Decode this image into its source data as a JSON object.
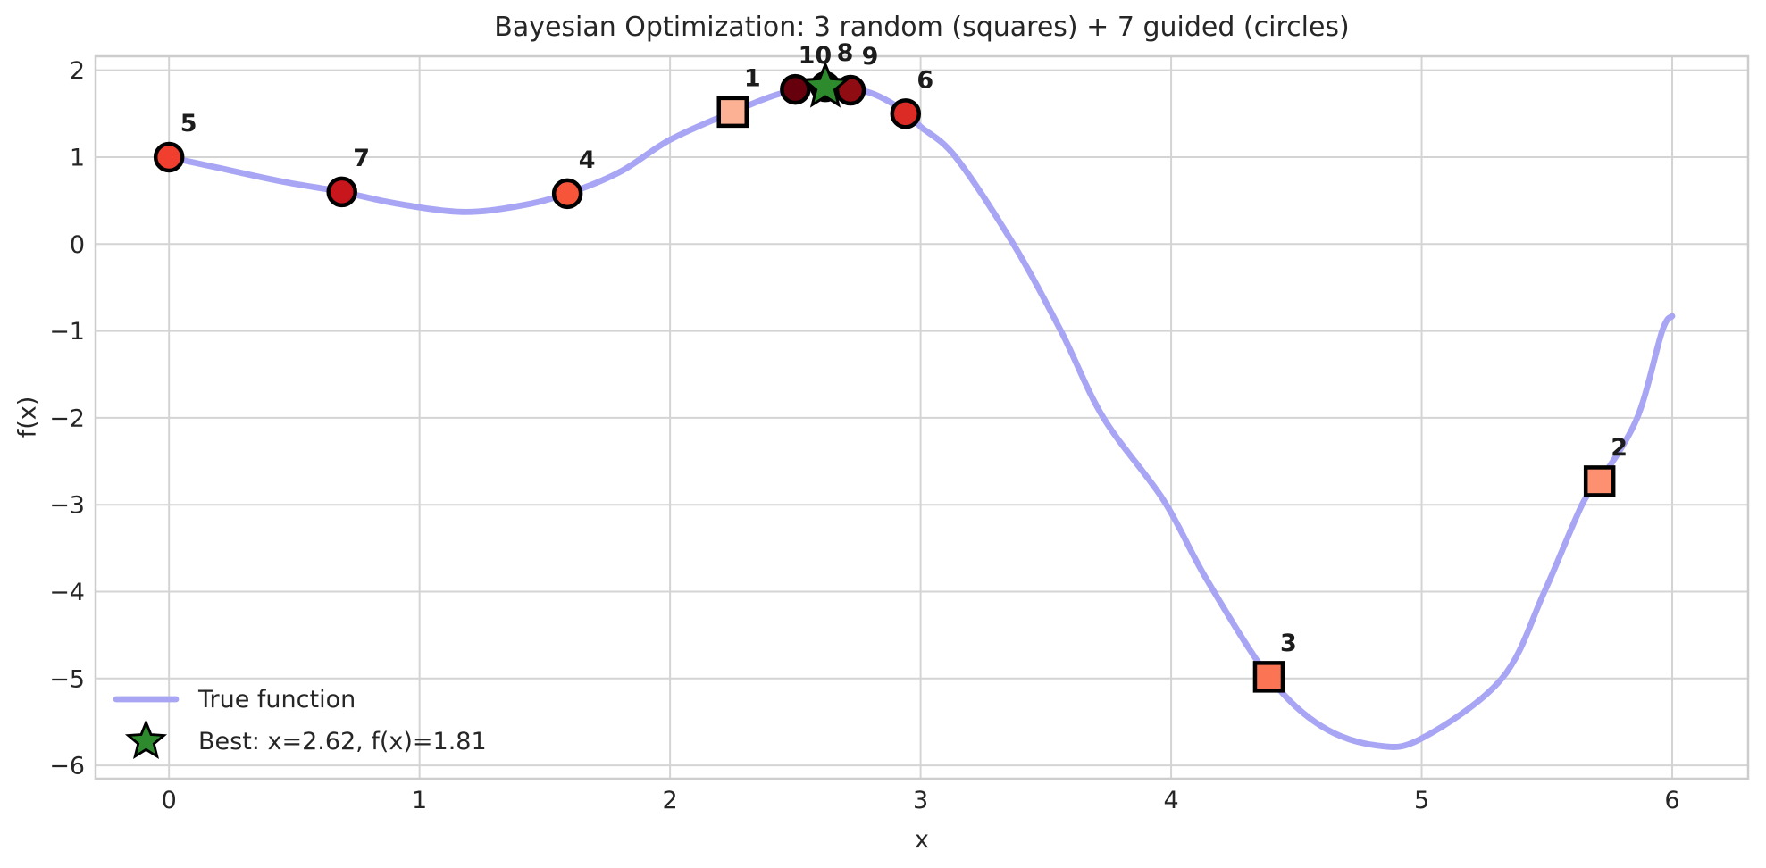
{
  "title": "Bayesian Optimization: 3 random (squares) + 7 guided (circles)",
  "legend": {
    "line_label": "True function",
    "best_label": "Best: x=2.62, f(x)=1.81"
  },
  "colors": {
    "curve": "#A8A6F4",
    "grid": "#D4D4D4",
    "spine": "#CDCDCD",
    "text": "#262626",
    "annotation": "#1C1C1C",
    "marker_edge": "#000000",
    "star_fill": "#2D8B2D"
  },
  "chart_data": {
    "type": "line+scatter",
    "title": "Bayesian Optimization: 3 random (squares) + 7 guided (circles)",
    "xlabel": "x",
    "ylabel": "f(x)",
    "xlim": [
      -0.293,
      6.303
    ],
    "ylim": [
      -6.153,
      2.161
    ],
    "x_ticks": [
      0,
      1,
      2,
      3,
      4,
      5,
      6
    ],
    "x_tick_labels": [
      "0",
      "1",
      "2",
      "3",
      "4",
      "5",
      "6"
    ],
    "y_ticks": [
      2,
      1,
      0,
      -1,
      -2,
      -3,
      -4,
      -5,
      -6
    ],
    "y_tick_labels": [
      "2",
      "1",
      "0",
      "−1",
      "−2",
      "−3",
      "−4",
      "−5",
      "−6"
    ],
    "grid": true,
    "legend_position": "lower left",
    "curve": {
      "name": "True function",
      "x": [
        0,
        0.2,
        0.45,
        0.69,
        0.9,
        1.17,
        1.4,
        1.59,
        1.8,
        2.0,
        2.25,
        2.45,
        2.62,
        2.8,
        2.95,
        3.0,
        3.14,
        3.37,
        3.56,
        3.73,
        3.97,
        4.14,
        4.39,
        4.6,
        4.82,
        5.0,
        5.32,
        5.49,
        5.64,
        5.71,
        5.86,
        5.96,
        6.0
      ],
      "y": [
        1.0,
        0.875,
        0.72,
        0.6,
        0.47,
        0.37,
        0.44,
        0.58,
        0.83,
        1.2,
        1.52,
        1.74,
        1.815,
        1.74,
        1.5,
        1.35,
        1.0,
        0.0,
        -1.0,
        -2.0,
        -2.95,
        -3.85,
        -4.98,
        -5.55,
        -5.77,
        -5.69,
        -5.0,
        -4.0,
        -3.0,
        -2.73,
        -2.0,
        -1.0,
        -0.83
      ]
    },
    "points": [
      {
        "label": "1",
        "x": 2.25,
        "y": 1.52,
        "marker": "square",
        "color": "#FCB094"
      },
      {
        "label": "2",
        "x": 5.71,
        "y": -2.73,
        "marker": "square",
        "color": "#FC9070"
      },
      {
        "label": "3",
        "x": 4.39,
        "y": -4.98,
        "marker": "square",
        "color": "#FB7555"
      },
      {
        "label": "4",
        "x": 1.59,
        "y": 0.58,
        "marker": "circle",
        "color": "#F6553A"
      },
      {
        "label": "5",
        "x": 0.0,
        "y": 1.0,
        "marker": "circle",
        "color": "#F03F2E"
      },
      {
        "label": "6",
        "x": 2.94,
        "y": 1.5,
        "marker": "circle",
        "color": "#DC2A25"
      },
      {
        "label": "7",
        "x": 0.69,
        "y": 0.6,
        "marker": "circle",
        "color": "#C7161C"
      },
      {
        "label": "8",
        "x": 2.62,
        "y": 1.81,
        "marker": "circle",
        "color": "#AD1117"
      },
      {
        "label": "9",
        "x": 2.72,
        "y": 1.77,
        "marker": "circle",
        "color": "#8F0D12"
      },
      {
        "label": "10",
        "x": 2.5,
        "y": 1.78,
        "marker": "circle",
        "color": "#67000D"
      }
    ],
    "best": {
      "x": 2.62,
      "y": 1.81,
      "label": "Best: x=2.62, f(x)=1.81"
    }
  }
}
